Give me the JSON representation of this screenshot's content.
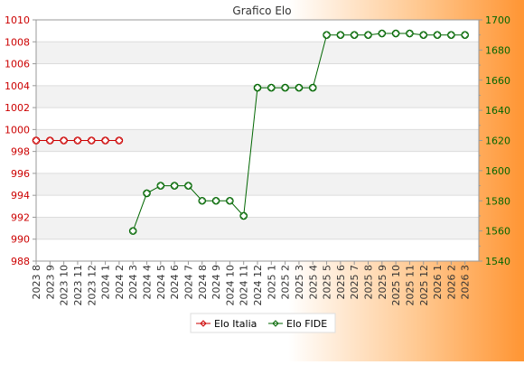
{
  "chart_data": {
    "type": "line",
    "title": "Grafico Elo",
    "categories": [
      "2023 8",
      "2023 9",
      "2023 10",
      "2023 11",
      "2023 12",
      "2024 1",
      "2024 2",
      "2024 3",
      "2024 4",
      "2024 5",
      "2024 6",
      "2024 7",
      "2024 8",
      "2024 9",
      "2024 10",
      "2024 11",
      "2024 12",
      "2025 1",
      "2025 2",
      "2025 3",
      "2025 4",
      "2025 5",
      "2025 6",
      "2025 7",
      "2025 8",
      "2025 9",
      "2025 10",
      "2025 11",
      "2025 12",
      "2026 1",
      "2026 2",
      "2026 3"
    ],
    "y_left": {
      "ticks": [
        "1010",
        "1008",
        "1006",
        "1004",
        "1002",
        "1000",
        "998",
        "996",
        "994",
        "992",
        "990",
        "988"
      ],
      "range": [
        988,
        1010
      ]
    },
    "y_right": {
      "ticks": [
        "1700",
        "1680",
        "1660",
        "1640",
        "1620",
        "1600",
        "1580",
        "1560",
        "1540"
      ],
      "range": [
        1540,
        1700
      ]
    },
    "grid": true,
    "legend_placement": "bottom-center",
    "series": [
      {
        "name": "Elo Italia",
        "axis": "left",
        "color": "#cc0000",
        "values": [
          999,
          999,
          999,
          999,
          999,
          999,
          999,
          null,
          null,
          null,
          null,
          null,
          null,
          null,
          null,
          null,
          null,
          null,
          null,
          null,
          null,
          null,
          null,
          null,
          null,
          null,
          null,
          null,
          null,
          null,
          null,
          null
        ]
      },
      {
        "name": "Elo FIDE",
        "axis": "right",
        "color": "#006600",
        "values": [
          null,
          null,
          null,
          null,
          null,
          null,
          null,
          1560,
          1585,
          1590,
          1590,
          1590,
          1580,
          1580,
          1580,
          1570,
          1655,
          1655,
          1655,
          1655,
          1655,
          1690,
          1690,
          1690,
          1690,
          1691,
          1691,
          1691,
          1690,
          1690,
          1690,
          1690
        ]
      }
    ]
  }
}
